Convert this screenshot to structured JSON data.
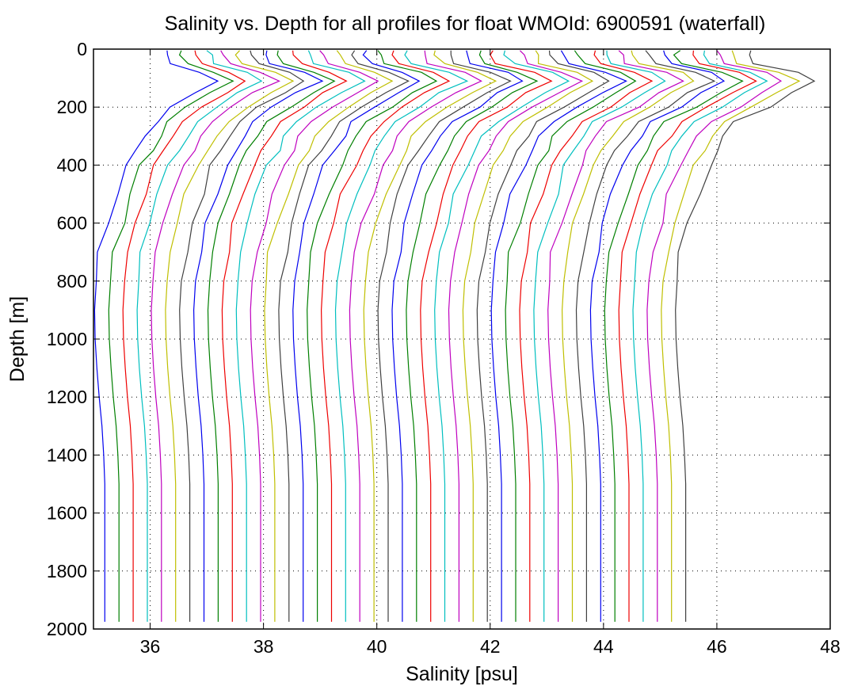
{
  "chart_data": {
    "type": "line",
    "title": "Salinity vs. Depth for all profiles for float WMOId: 6900591 (waterfall)",
    "xlabel": "Salinity [psu]",
    "ylabel": "Depth [m]",
    "xlim": [
      35,
      48
    ],
    "ylim": [
      0,
      2000
    ],
    "y_reversed": true,
    "grid": true,
    "grid_style": "dotted",
    "x_ticks": [
      36,
      38,
      40,
      42,
      44,
      46,
      48
    ],
    "y_ticks": [
      0,
      200,
      400,
      600,
      800,
      1000,
      1200,
      1400,
      1600,
      1800,
      2000
    ],
    "color_cycle": [
      "#0000ee",
      "#007f00",
      "#ee0000",
      "#00bfbf",
      "#bf00bf",
      "#bfbf00",
      "#404040"
    ],
    "profile_count": 42,
    "profile_offset_step": 0.25,
    "depth_grid": [
      5,
      20,
      50,
      80,
      110,
      150,
      200,
      250,
      300,
      350,
      400,
      500,
      600,
      700,
      800,
      900,
      1000,
      1100,
      1200,
      1300,
      1400,
      1500,
      1600,
      1700,
      1800,
      1900,
      1975
    ],
    "base_profile": [
      36.3,
      36.3,
      36.4,
      36.9,
      37.2,
      36.8,
      36.4,
      36.1,
      35.9,
      35.75,
      35.6,
      35.4,
      35.25,
      35.12,
      35.05,
      35.02,
      35.03,
      35.06,
      35.1,
      35.15,
      35.18,
      35.2,
      35.2,
      35.2,
      35.2,
      35.2,
      35.2
    ],
    "profile_depth_range": [
      10,
      1975
    ]
  }
}
